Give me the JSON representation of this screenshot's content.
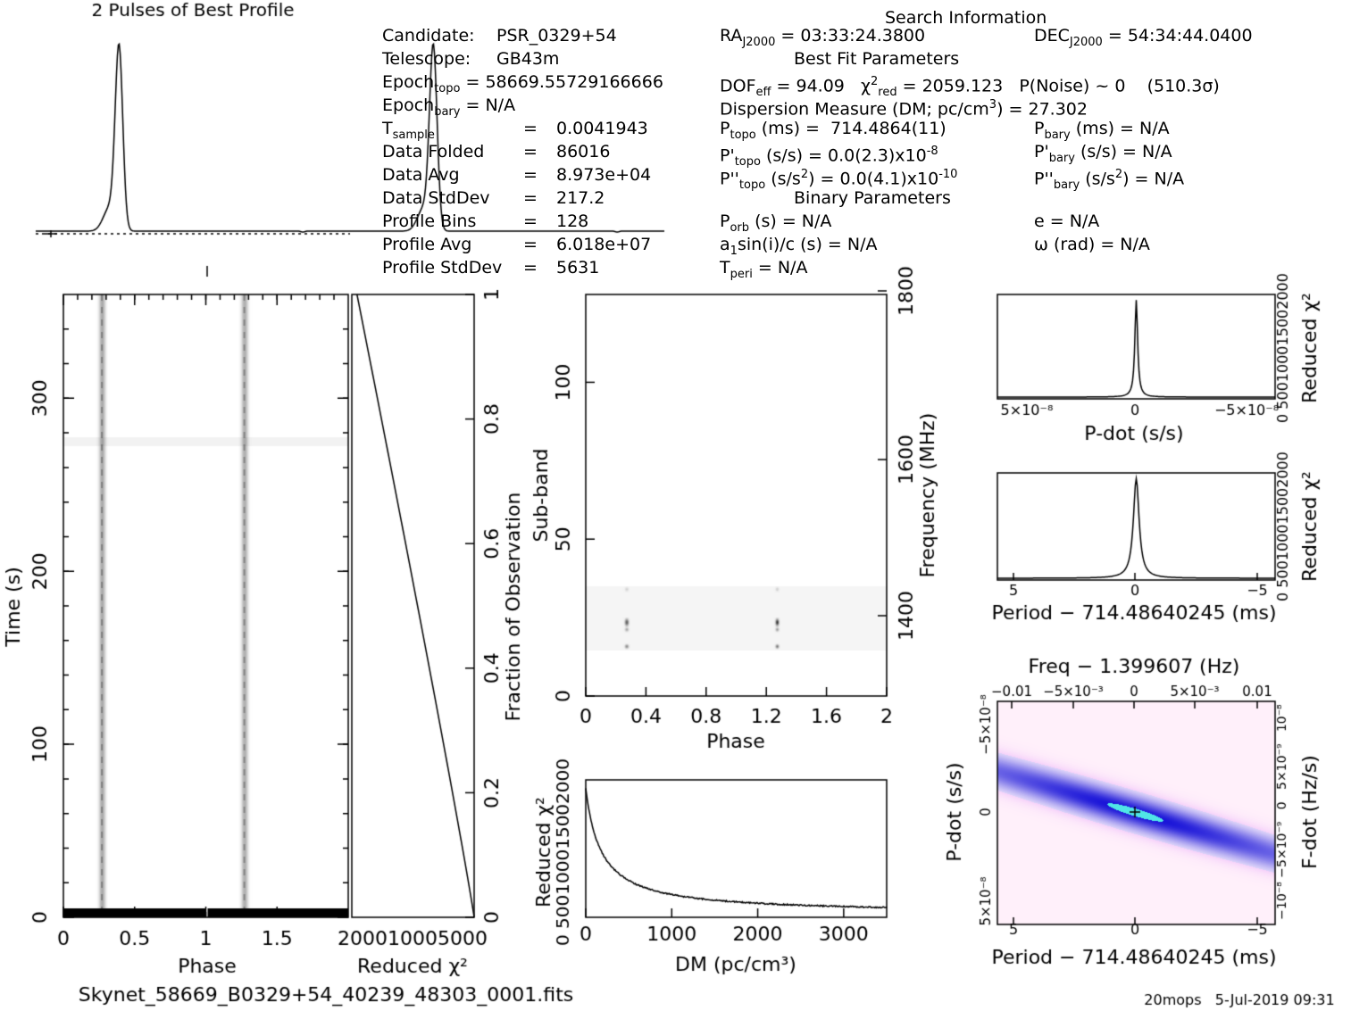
{
  "header": {
    "profile_title": "2 Pulses of Best Profile",
    "search_title": "Search Information",
    "best_fit_title": "Best Fit Parameters",
    "binary_title": "Binary Parameters"
  },
  "candidate_info": [
    {
      "label": "Candidate:",
      "value": "PSR_0329+54"
    },
    {
      "label": "Telescope:",
      "value": "GB43m"
    },
    {
      "label": "Epoch<sub>topo</sub> = 58669.55729166666",
      "value": ""
    },
    {
      "label": "Epoch<sub>bary</sub> = N/A",
      "value": ""
    },
    {
      "label": "T<sub>sample</sub>",
      "value": "0.0041943"
    },
    {
      "label": "Data Folded",
      "value": "86016"
    },
    {
      "label": "Data Avg",
      "value": "8.973e+04"
    },
    {
      "label": "Data StdDev",
      "value": "217.2"
    },
    {
      "label": "Profile Bins",
      "value": "128"
    },
    {
      "label": "Profile Avg",
      "value": "6.018e+07"
    },
    {
      "label": "Profile StdDev",
      "value": "5631"
    }
  ],
  "search_info": {
    "ra": "RA<sub>J2000</sub> = 03:33:24.3800",
    "dec": "DEC<sub>J2000</sub> = 54:34:44.0400",
    "dof": "DOF<sub>eff</sub> = 94.09   &chi;<sup>2</sup><sub>red</sub> = 2059.123   P(Noise) ~ 0    (510.3&sigma;)",
    "dm": "Dispersion Measure (DM; pc/cm<sup>3</sup>) = 27.302",
    "ptopo": "P<sub>topo</sub> (ms) =  714.4864(11)",
    "pbary": "P<sub>bary</sub> (ms) = N/A",
    "pdtopo": "P'<sub>topo</sub> (s/s) = 0.0(2.3)x10<sup>-8</sup>",
    "pdbary": "P'<sub>bary</sub> (s/s) = N/A",
    "pddtopo": "P''<sub>topo</sub> (s/s<sup>2</sup>) = 0.0(4.1)x10<sup>-10</sup>",
    "pddbary": "P''<sub>bary</sub> (s/s<sup>2</sup>) = N/A",
    "porb": "P<sub>orb</sub> (s) = N/A",
    "e": "e = N/A",
    "a1": "a<sub>1</sub>sin(i)/c (s) = N/A",
    "omega": "&omega; (rad) = N/A",
    "tperi": "T<sub>peri</sub> = N/A"
  },
  "footer": {
    "filename": "Skynet_58669_B0329+54_40239_48303_0001.fits",
    "stamp": "20mops   5-Jul-2019 09:31"
  },
  "chart_data": [
    {
      "type": "line",
      "title": "2 Pulses of Best Profile",
      "x": "phase 0-2",
      "description": "two narrow pulses at phase ~0.27 and ~1.27"
    },
    {
      "type": "heatmap",
      "xlabel": "Phase",
      "ylabel": "Time (s)",
      "xticks": [
        "0",
        "0.5",
        "1",
        "1.5"
      ],
      "yticks": [
        "0",
        "100",
        "200",
        "300"
      ],
      "xlim": [
        0,
        2
      ],
      "ylim": [
        0,
        360
      ],
      "pulse_phases": [
        0.27,
        1.27
      ]
    },
    {
      "type": "line",
      "xlabel": "Reduced χ²",
      "ylabel": "Fraction of Observation",
      "xticks": [
        "2000",
        "1000",
        "500",
        "0"
      ],
      "yticks": [
        "0",
        "0.2",
        "0.4",
        "0.6",
        "0.8",
        "1"
      ]
    },
    {
      "type": "heatmap",
      "xlabel": "Phase",
      "ylabel": "Sub-band",
      "y2label": "Frequency (MHz)",
      "xticks": [
        "0",
        "0.4",
        "0.8",
        "1.2",
        "1.6",
        "2"
      ],
      "yticks": [
        "0",
        "50",
        "100"
      ],
      "y2ticks": [
        "1400",
        "1600",
        "1800"
      ],
      "xlim": [
        0,
        2
      ],
      "ylim": [
        0,
        128
      ]
    },
    {
      "type": "line",
      "xlabel": "DM (pc/cm³)",
      "ylabel": "Reduced χ²",
      "xticks": [
        "0",
        "1000",
        "2000",
        "3000"
      ],
      "yticks": [
        "0",
        "500",
        "1000",
        "1500",
        "2000"
      ],
      "xlim": [
        0,
        3500
      ]
    },
    {
      "type": "line",
      "xlabel": "P-dot (s/s)",
      "ylabel": "Reduced χ²",
      "xticks": [
        "5×10⁻⁸",
        "0",
        "−5×10⁻⁸"
      ],
      "yticks": [
        "0",
        "500",
        "1000",
        "1500",
        "2000"
      ]
    },
    {
      "type": "line",
      "xlabel": "Period − 714.48640245 (ms)",
      "ylabel": "Reduced χ²",
      "xticks": [
        "5",
        "0",
        "−5"
      ],
      "yticks": [
        "0",
        "500",
        "1000",
        "1500",
        "2000"
      ]
    },
    {
      "type": "heatmap",
      "title": "Freq − 1.399607 (Hz)",
      "xlabel": "Period − 714.48640245 (ms)",
      "ylabel": "P-dot (s/s)",
      "y2label": "F-dot (Hz/s)",
      "xticks": [
        "5",
        "0",
        "−5"
      ],
      "x2ticks": [
        "−0.01",
        "−5×10⁻³",
        "0",
        "5×10⁻³",
        "0.01"
      ],
      "yticks": [
        "5×10⁻⁸",
        "0",
        "−5×10⁻⁸"
      ],
      "y2ticks": [
        "−10⁻⁸",
        "−5×10⁻⁹",
        "0",
        "5×10⁻⁹",
        "10⁻⁸"
      ]
    }
  ]
}
